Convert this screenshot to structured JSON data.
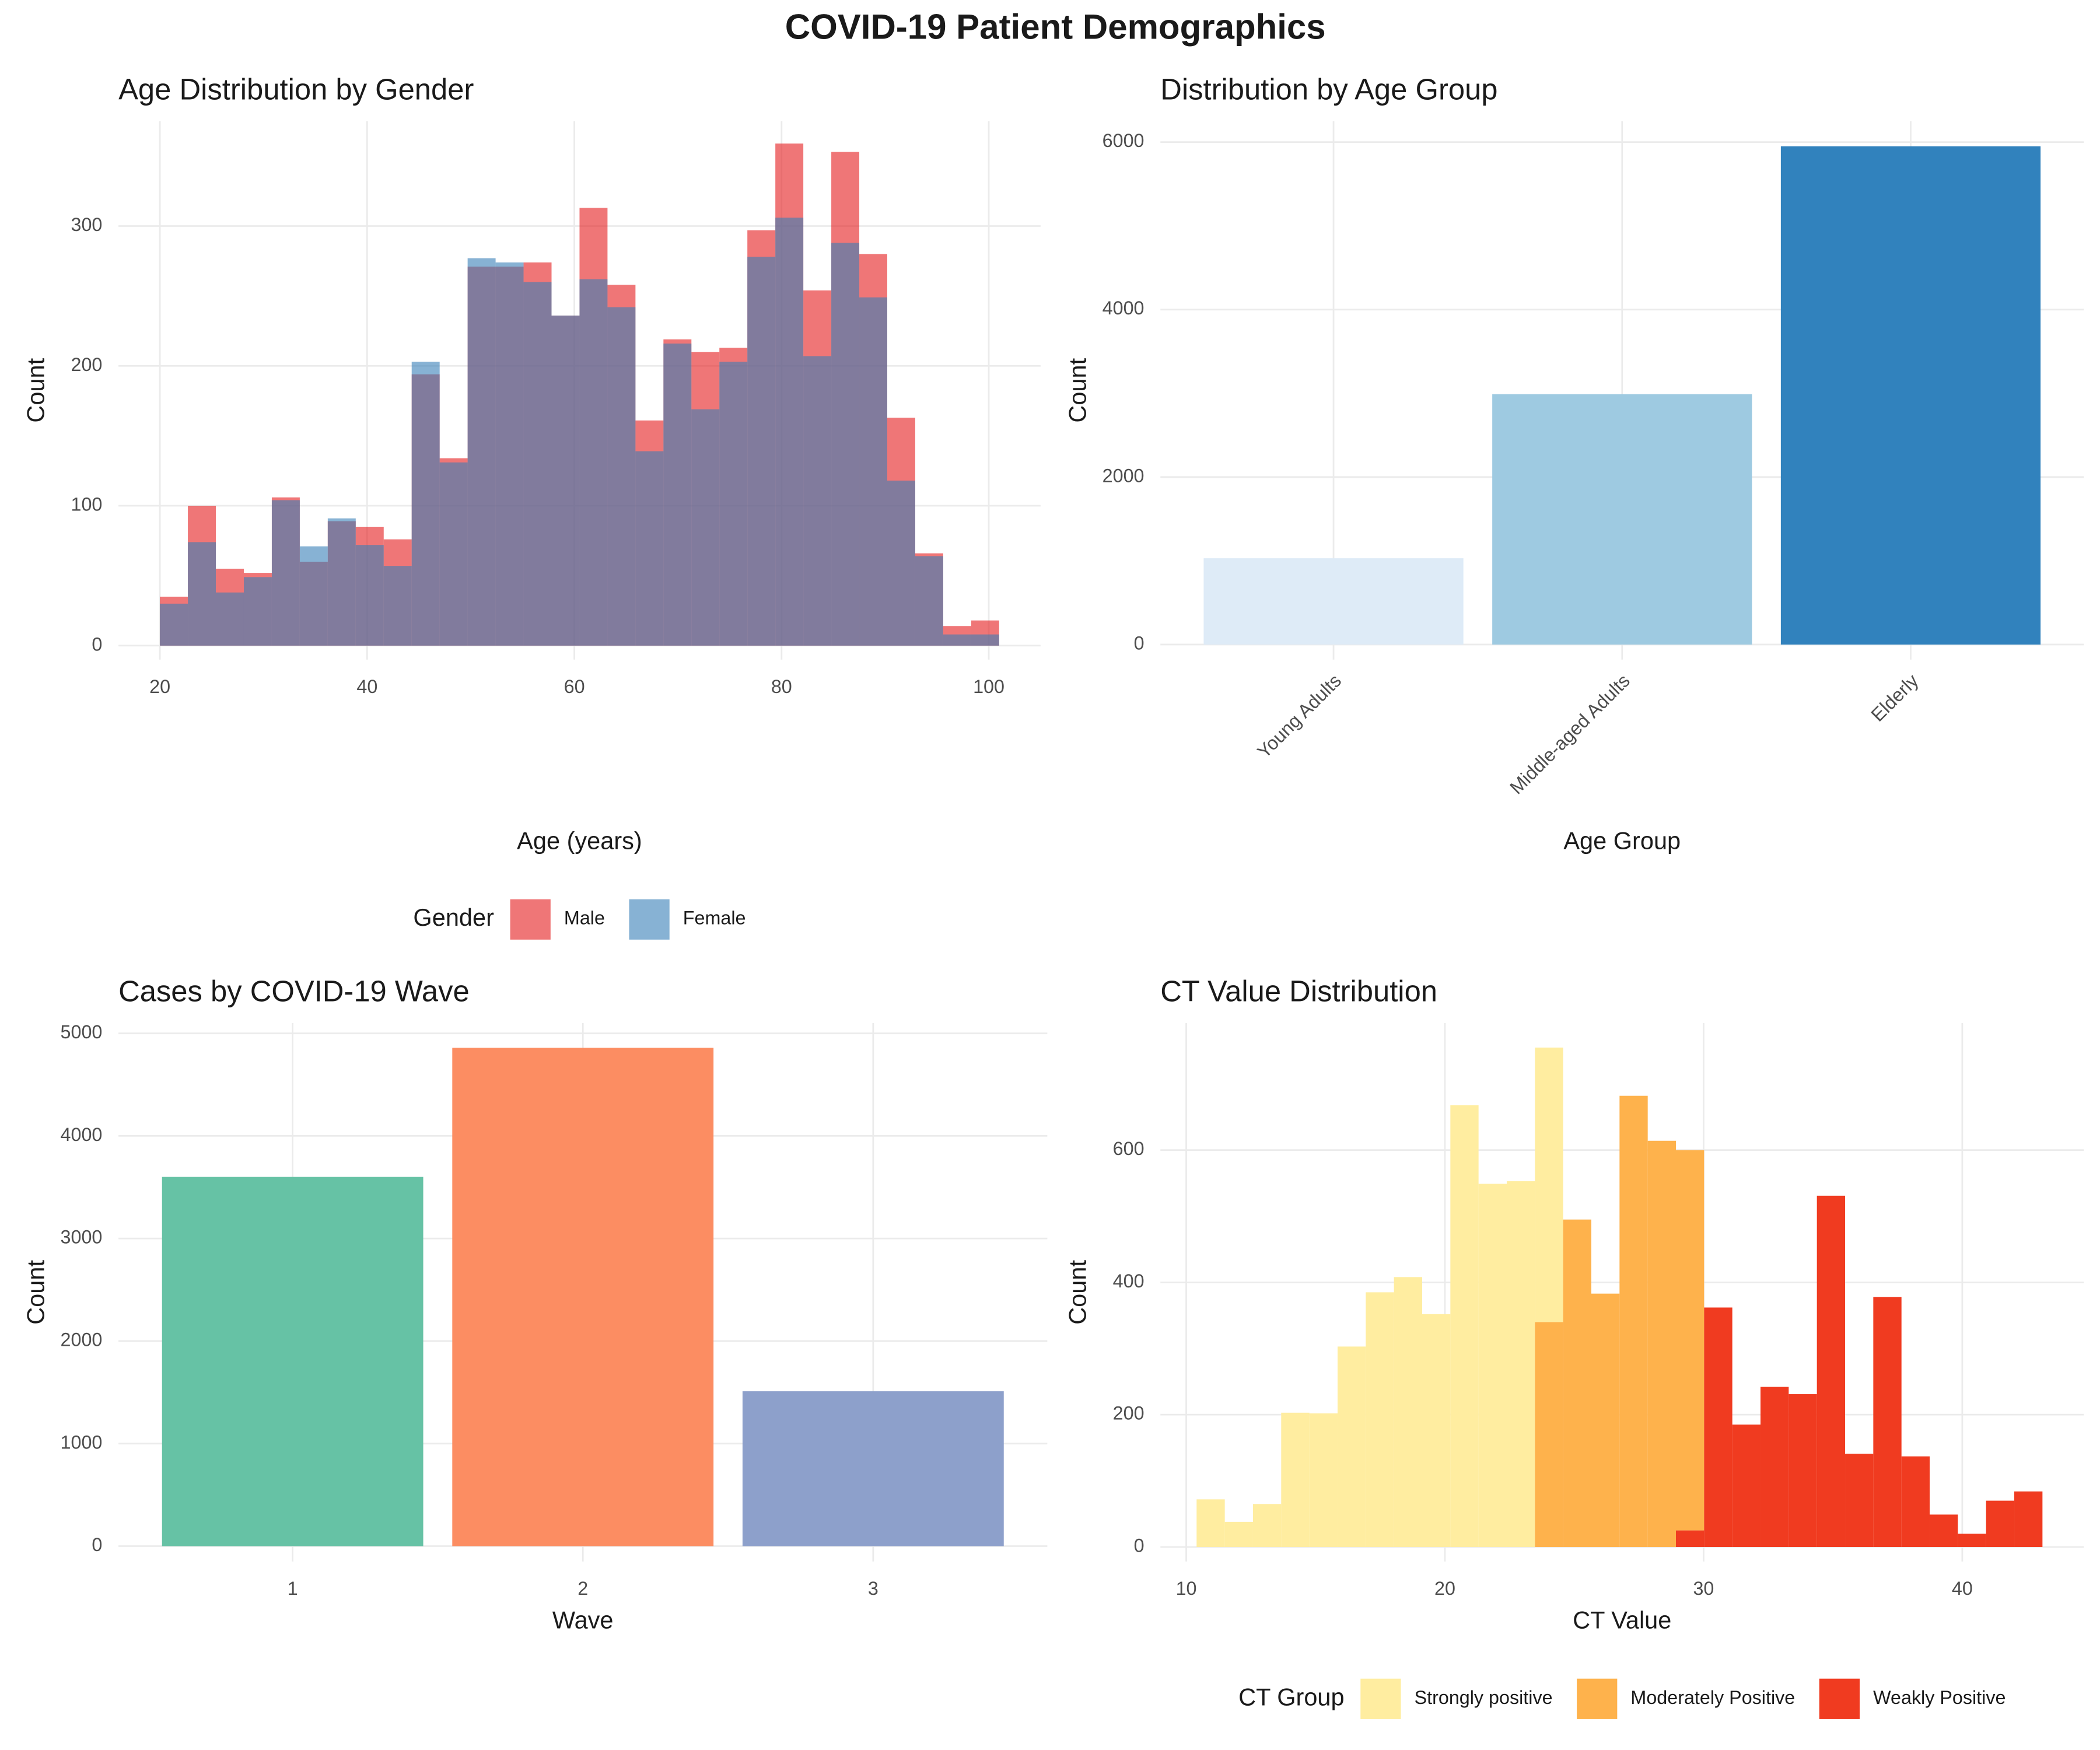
{
  "title": "COVID-19 Patient Demographics",
  "chart_data": [
    {
      "type": "histogram",
      "title": "Age Distribution by Gender",
      "x_label": "Age (years)",
      "y_label": "Count",
      "bins": [
        20,
        22.7,
        25.4,
        28.1,
        30.8,
        33.5,
        36.2,
        38.9,
        41.6,
        44.3,
        47,
        49.7,
        52.4,
        55.1,
        57.8,
        60.5,
        63.2,
        65.9,
        68.6,
        71.3,
        74,
        76.7,
        79.4,
        82.1,
        84.8,
        87.5,
        90.2,
        92.9,
        95.6,
        98.3,
        101
      ],
      "series": [
        {
          "name": "Male",
          "color": "#E41A1C",
          "values": [
            35,
            100,
            55,
            52,
            106,
            60,
            89,
            85,
            76,
            194,
            134,
            271,
            271,
            274,
            236,
            313,
            258,
            161,
            219,
            210,
            213,
            297,
            359,
            254,
            353,
            280,
            163,
            66,
            14,
            18
          ]
        },
        {
          "name": "Female",
          "color": "#377EB8",
          "values": [
            30,
            74,
            38,
            49,
            104,
            71,
            91,
            72,
            57,
            203,
            131,
            277,
            274,
            260,
            236,
            262,
            242,
            139,
            216,
            169,
            203,
            278,
            306,
            207,
            288,
            249,
            118,
            64,
            8,
            8
          ]
        }
      ],
      "stacked": false,
      "alpha": 0.6,
      "legend_title": "Gender",
      "legend": "bottom",
      "xlim": [
        16,
        105
      ],
      "xticks": [
        20,
        40,
        60,
        80,
        100
      ],
      "ylim": [
        -10,
        375
      ],
      "yticks": [
        0,
        100,
        200,
        300
      ],
      "grid": true
    },
    {
      "type": "bar",
      "title": "Distribution by Age Group",
      "x_label": "Age Group",
      "y_label": "Count",
      "categories": [
        "Young Adults",
        "Middle-aged Adults",
        "Elderly"
      ],
      "values": [
        1030,
        2990,
        5950
      ],
      "colors": [
        "#DEEBF7",
        "#9ECAE1",
        "#3182BD"
      ],
      "rotate_labels": true,
      "ylim": [
        -180,
        6250
      ],
      "yticks": [
        0,
        2000,
        4000,
        6000
      ],
      "grid": true
    },
    {
      "type": "bar",
      "title": "Cases by COVID-19 Wave",
      "x_label": "Wave",
      "y_label": "Count",
      "categories": [
        "1",
        "2",
        "3"
      ],
      "values": [
        3600,
        4860,
        1510
      ],
      "colors": [
        "#66C2A5",
        "#FC8D62",
        "#8DA0CB"
      ],
      "rotate_labels": false,
      "ylim": [
        -150,
        5100
      ],
      "yticks": [
        0,
        1000,
        2000,
        3000,
        4000,
        5000
      ],
      "grid": true
    },
    {
      "type": "histogram",
      "title": "CT Value Distribution",
      "x_label": "CT Value",
      "y_label": "Count",
      "bins": [
        10.4,
        11.49,
        12.58,
        13.67,
        14.76,
        15.85,
        16.94,
        18.03,
        19.12,
        20.21,
        21.3,
        22.39,
        23.48,
        24.57,
        25.66,
        26.75,
        27.84,
        28.93,
        30.02,
        31.11,
        32.2,
        33.29,
        34.38,
        35.47,
        36.56,
        37.65,
        38.74,
        39.83,
        40.92,
        42.01,
        43.1
      ],
      "series": [
        {
          "name": "Strongly positive",
          "color": "#FFEDA0",
          "values": [
            72,
            38,
            65,
            203,
            202,
            303,
            385,
            408,
            352,
            668,
            549,
            553,
            415,
            null,
            null,
            null,
            null,
            null,
            null,
            null,
            null,
            null,
            null,
            null,
            null,
            null,
            null,
            null,
            null,
            null
          ]
        },
        {
          "name": "Moderately Positive",
          "color": "#FEB24C",
          "values": [
            null,
            null,
            null,
            null,
            null,
            null,
            null,
            null,
            null,
            null,
            null,
            null,
            340,
            495,
            383,
            682,
            614,
            575,
            null,
            null,
            null,
            null,
            null,
            null,
            null,
            null,
            null,
            null,
            null,
            null
          ]
        },
        {
          "name": "Weakly Positive",
          "color": "#F03B20",
          "values": [
            null,
            null,
            null,
            null,
            null,
            null,
            null,
            null,
            null,
            null,
            null,
            null,
            null,
            null,
            null,
            null,
            null,
            25,
            362,
            185,
            242,
            231,
            531,
            141,
            378,
            137,
            49,
            20,
            70,
            84
          ]
        }
      ],
      "stacked": true,
      "legend_title": "CT Group",
      "legend": "bottom",
      "xlim": [
        9,
        44.7
      ],
      "xticks": [
        10,
        20,
        30,
        40
      ],
      "ylim": [
        -22,
        792
      ],
      "yticks": [
        0,
        200,
        400,
        600
      ],
      "grid": true
    }
  ]
}
